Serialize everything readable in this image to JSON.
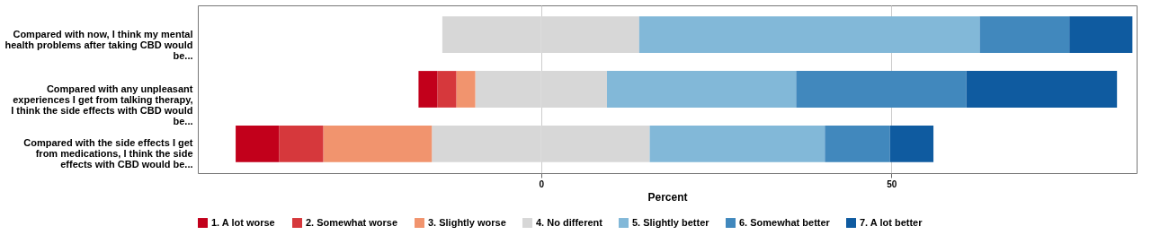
{
  "chart_data": {
    "type": "bar",
    "orientation": "horizontal",
    "stacked": true,
    "categories": [
      "Compared with now, I think my mental health problems after taking CBD would be...",
      "Compared with any unpleasant experiences I get from talking therapy, I think the side effects with CBD would be...",
      "Compared with the side effects I get from medications, I think the side effects with CBD would be..."
    ],
    "series": [
      {
        "name": "4. No different",
        "color": "#d7d7d7",
        "values": [
          -14.1,
          -9.4,
          -15.6
        ]
      },
      {
        "name": "3. Slightly worse",
        "color": "#f1946e",
        "values": [
          0,
          -2.7,
          -15.5
        ]
      },
      {
        "name": "2. Somewhat worse",
        "color": "#d6383c",
        "values": [
          0,
          -2.7,
          -6.3
        ]
      },
      {
        "name": "1. A lot worse",
        "color": "#c2001b",
        "values": [
          0,
          -2.7,
          -6.2
        ]
      },
      {
        "color": "#d7d7d7",
        "values": [
          14.0,
          9.4,
          15.5
        ]
      },
      {
        "name": "5. Slightly better",
        "color": "#82b8d8",
        "values": [
          48.6,
          27.0,
          25.0
        ]
      },
      {
        "name": "6. Somewhat better",
        "color": "#4188bd",
        "values": [
          12.8,
          24.3,
          9.3
        ]
      },
      {
        "name": "7. A lot better",
        "color": "#0f5ba0",
        "values": [
          9.0,
          21.5,
          6.2
        ]
      }
    ],
    "xlim": [
      -49,
      85
    ],
    "xticks": [
      0,
      50
    ],
    "xlabel": "Percent",
    "grid": "x",
    "legend": "bottom"
  }
}
